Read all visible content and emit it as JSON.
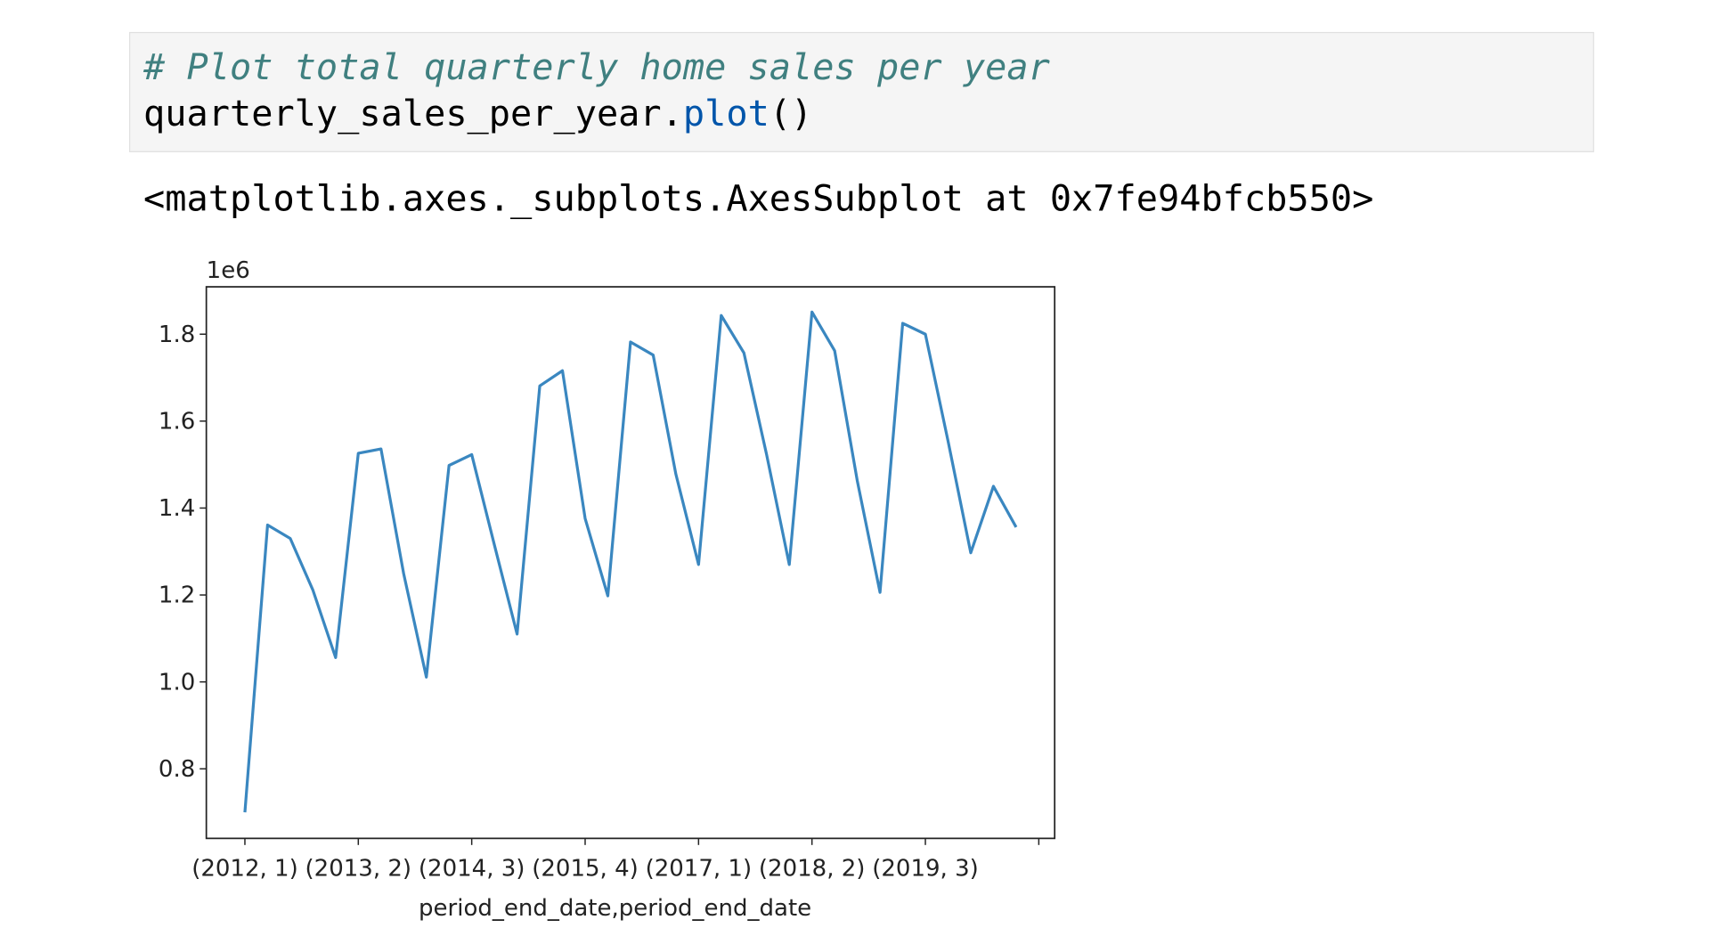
{
  "code": {
    "comment": "# Plot total quarterly home sales per year",
    "object": "quarterly_sales_per_year.",
    "method": "plot",
    "args": "()"
  },
  "output": "<matplotlib.axes._subplots.AxesSubplot at 0x7fe94bfcb550>",
  "chart_data": {
    "type": "line",
    "xlabel": "period_end_date,period_end_date",
    "offset_label": "1e6",
    "categories": [
      "(2012, 1)",
      null,
      null,
      null,
      null,
      "(2013, 2)",
      null,
      null,
      null,
      null,
      "(2014, 3)",
      null,
      null,
      null,
      null,
      "(2015, 4)",
      null,
      null,
      null,
      null,
      "(2017, 1)",
      null,
      null,
      null,
      null,
      "(2018, 2)",
      null,
      null,
      null,
      null,
      "(2019, 3)",
      null,
      null,
      null,
      null
    ],
    "series": [
      {
        "color": "#3a87c0",
        "values": [
          0.7,
          1.361,
          1.33,
          1.211,
          1.056,
          1.526,
          1.536,
          1.249,
          1.011,
          1.498,
          1.523,
          1.315,
          1.11,
          1.681,
          1.716,
          1.376,
          1.198,
          1.782,
          1.752,
          1.478,
          1.27,
          1.843,
          1.757,
          1.523,
          1.27,
          1.851,
          1.762,
          1.462,
          1.206,
          1.825,
          1.8,
          1.554,
          1.297,
          1.45,
          1.356
        ]
      }
    ],
    "xlim": [
      -1.7,
      35.7
    ],
    "xticks": [
      {
        "value": 0,
        "label": "(2012, 1)"
      },
      {
        "value": 5,
        "label": "(2013, 2)"
      },
      {
        "value": 10,
        "label": "(2014, 3)"
      },
      {
        "value": 15,
        "label": "(2015, 4)"
      },
      {
        "value": 20,
        "label": "(2017, 1)"
      },
      {
        "value": 25,
        "label": "(2018, 2)"
      },
      {
        "value": 30,
        "label": "(2019, 3)"
      },
      35
    ],
    "ylim": [
      0.64,
      1.909
    ],
    "yticks": [
      0.8,
      {
        "value": 1,
        "label": "1.0"
      },
      1.2,
      1.4,
      1.6,
      1.8
    ],
    "grid": false
  }
}
